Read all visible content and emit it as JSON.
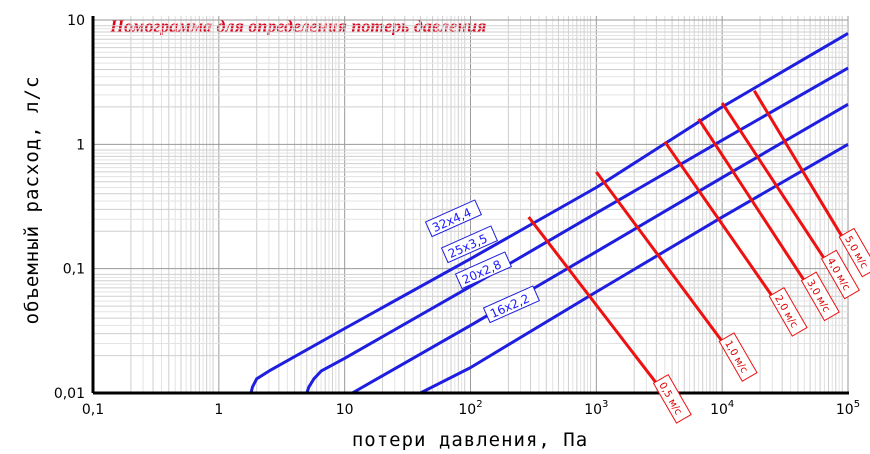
{
  "chart_data": {
    "type": "line",
    "title": "Номограмма для определения потерь давления",
    "title_color": "#e0001a",
    "xlabel": "потери давления, Па",
    "ylabel": "объемный расход, л/с",
    "x_scale": "log",
    "y_scale": "log",
    "xlim": [
      0.1,
      100000
    ],
    "ylim": [
      0.01,
      10
    ],
    "x_ticks": [
      {
        "value": 0.1,
        "label": "0,1"
      },
      {
        "value": 1,
        "label": "1"
      },
      {
        "value": 10,
        "label": "10"
      },
      {
        "value": 100,
        "label": "10",
        "exp": "2"
      },
      {
        "value": 1000,
        "label": "10",
        "exp": "3"
      },
      {
        "value": 10000,
        "label": "10",
        "exp": "4"
      },
      {
        "value": 100000,
        "label": "10",
        "exp": "5"
      }
    ],
    "y_ticks": [
      {
        "value": 0.01,
        "label": "0,01"
      },
      {
        "value": 0.1,
        "label": "0,1"
      },
      {
        "value": 1,
        "label": "1"
      },
      {
        "value": 10,
        "label": "10"
      }
    ],
    "grid": true,
    "series_color": "#1e1ee0",
    "velocity_color": "#ee1111",
    "series": [
      {
        "name": "32x4,4",
        "points": [
          [
            1.8,
            0.01
          ],
          [
            1.85,
            0.0112
          ],
          [
            2.0,
            0.013
          ],
          [
            2.5,
            0.015
          ],
          [
            10,
            0.033
          ],
          [
            100,
            0.12
          ],
          [
            1000,
            0.45
          ],
          [
            10000,
            2.0
          ],
          [
            100000,
            7.8
          ]
        ]
      },
      {
        "name": "25x3,5",
        "points": [
          [
            5.0,
            0.01
          ],
          [
            5.2,
            0.0112
          ],
          [
            5.7,
            0.013
          ],
          [
            6.5,
            0.015
          ],
          [
            10,
            0.019
          ],
          [
            100,
            0.072
          ],
          [
            1000,
            0.28
          ],
          [
            10000,
            1.08
          ],
          [
            100000,
            4.1
          ]
        ]
      },
      {
        "name": "20x2,8",
        "points": [
          [
            11.5,
            0.01
          ],
          [
            100,
            0.035
          ],
          [
            1000,
            0.137
          ],
          [
            10000,
            0.54
          ],
          [
            100000,
            2.1
          ]
        ]
      },
      {
        "name": "16x2,2",
        "points": [
          [
            40,
            0.01
          ],
          [
            100,
            0.016
          ],
          [
            1000,
            0.065
          ],
          [
            10000,
            0.26
          ],
          [
            100000,
            1.0
          ]
        ]
      }
    ],
    "velocity_lines": [
      {
        "label": "0,5 м/с",
        "points": [
          [
            290,
            0.26
          ],
          [
            3000,
            0.012
          ]
        ]
      },
      {
        "label": "1,0 м/с",
        "points": [
          [
            1000,
            0.6
          ],
          [
            10000,
            0.026
          ]
        ]
      },
      {
        "label": "2,0 м/с",
        "points": [
          [
            3500,
            1.05
          ],
          [
            25000,
            0.06
          ]
        ]
      },
      {
        "label": "3,0 м/с",
        "points": [
          [
            6500,
            1.6
          ],
          [
            45000,
            0.08
          ]
        ]
      },
      {
        "label": "4,0 м/с",
        "points": [
          [
            10000,
            2.15
          ],
          [
            65000,
            0.12
          ]
        ]
      },
      {
        "label": "5,0 м/с",
        "points": [
          [
            18000,
            2.7
          ],
          [
            90000,
            0.18
          ]
        ]
      }
    ]
  }
}
